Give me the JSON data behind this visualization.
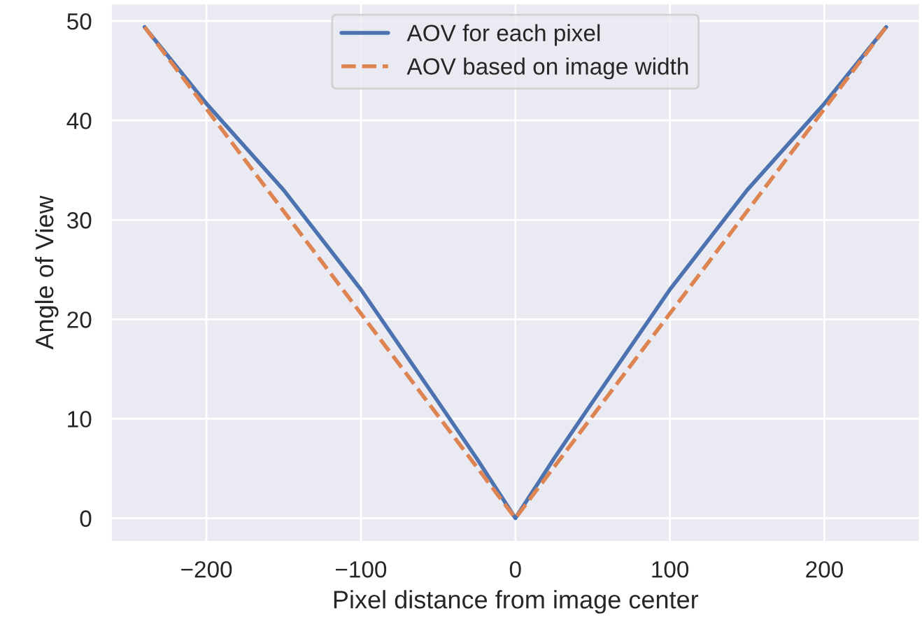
{
  "chart_data": {
    "type": "line",
    "xlabel": "Pixel distance from image center",
    "ylabel": "Angle of View",
    "xlim": [
      -262,
      262
    ],
    "ylim": [
      -2.4,
      51.8
    ],
    "xticks": [
      -200,
      -100,
      0,
      100,
      200
    ],
    "yticks": [
      0,
      10,
      20,
      30,
      40,
      50
    ],
    "grid": true,
    "legend": "top",
    "marker": "none",
    "series": [
      {
        "name": "AOV for each pixel",
        "color": "#4c72b0",
        "line_style": "solid",
        "x": [
          -240,
          -200,
          -150,
          -100,
          -50,
          -25,
          0,
          25,
          50,
          100,
          150,
          200,
          240
        ],
        "values": [
          49.4,
          41.7,
          33.0,
          23.0,
          11.7,
          6.0,
          0,
          6.0,
          11.7,
          23.0,
          33.0,
          41.7,
          49.4
        ]
      },
      {
        "name": "AOV based on image width",
        "color": "#dd8452",
        "line_style": "dashed",
        "x": [
          -240,
          0,
          240
        ],
        "values": [
          49.4,
          0,
          49.4
        ]
      }
    ]
  }
}
